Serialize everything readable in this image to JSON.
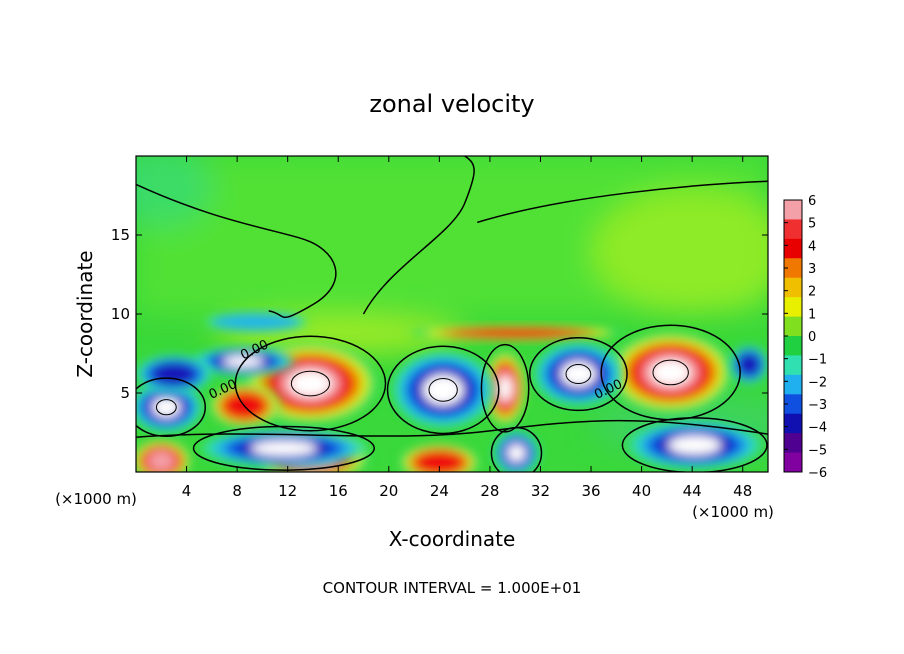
{
  "chart_data": {
    "type": "heatmap",
    "title": "zonal velocity",
    "xlabel": "X-coordinate",
    "ylabel": "Z-coordinate",
    "x_unit": "(×1000 m)",
    "z_unit": "(×1000 m)",
    "xlim": [
      0,
      50
    ],
    "ylim": [
      0,
      20
    ],
    "x_ticks": [
      4,
      8,
      12,
      16,
      20,
      24,
      28,
      32,
      36,
      40,
      44,
      48
    ],
    "y_ticks": [
      5,
      10,
      15
    ],
    "colorbar": {
      "min": -6,
      "max": 6,
      "tick_labels": [
        "6",
        "5",
        "4",
        "3",
        "2",
        "1",
        "0",
        "−1",
        "−2",
        "−3",
        "−4",
        "−5",
        "−6"
      ],
      "colors": [
        "#f4a0a8",
        "#f03030",
        "#e80000",
        "#f07800",
        "#f0c000",
        "#e8f000",
        "#80e020",
        "#20d040",
        "#30e0b0",
        "#20b0f0",
        "#1050e0",
        "#1010b0",
        "#500090",
        "#8000a0"
      ]
    },
    "contour_labels": [
      {
        "text": "0.00",
        "x": 9.5,
        "z": 7.5
      },
      {
        "text": "0.00",
        "x": 7.0,
        "z": 5.0
      },
      {
        "text": "0.00",
        "x": 37.5,
        "z": 5.0
      }
    ],
    "footnote": "CONTOUR INTERVAL = 1.000E+01",
    "features": [
      {
        "kind": "positive",
        "x": 13.8,
        "z": 5.6,
        "a": 5.4,
        "b": 2.6,
        "level": 1
      },
      {
        "kind": "positive",
        "x": 42.3,
        "z": 6.3,
        "a": 5.0,
        "b": 2.6,
        "level": 1
      },
      {
        "kind": "positive",
        "x": 29.2,
        "z": 5.3,
        "a": 1.7,
        "b": 2.4,
        "level": 0.8
      },
      {
        "kind": "positive",
        "x": 8.6,
        "z": 4.2,
        "a": 2.8,
        "b": 1.4,
        "level": 0.55
      },
      {
        "kind": "positive",
        "x": 30.2,
        "z": 8.8,
        "a": 8.5,
        "b": 0.5,
        "level": 0.5
      },
      {
        "kind": "positive",
        "x": 14,
        "z": 0.9,
        "a": 4.5,
        "b": 1.5,
        "level": 0.7
      },
      {
        "kind": "positive",
        "x": 24,
        "z": 0.6,
        "a": 3.2,
        "b": 1.2,
        "level": 0.5
      },
      {
        "kind": "positive",
        "x": 2,
        "z": 0.7,
        "a": 2.4,
        "b": 1.4,
        "level": 0.7
      },
      {
        "kind": "negative",
        "x": 2.4,
        "z": 4.1,
        "a": 2.8,
        "b": 1.6,
        "level": 1
      },
      {
        "kind": "negative",
        "x": 24.3,
        "z": 5.2,
        "a": 4.0,
        "b": 2.4,
        "level": 1
      },
      {
        "kind": "negative",
        "x": 35.0,
        "z": 6.2,
        "a": 3.5,
        "b": 2.0,
        "level": 1
      },
      {
        "kind": "negative",
        "x": 8.5,
        "z": 7.0,
        "a": 4.0,
        "b": 0.9,
        "level": 0.7
      },
      {
        "kind": "negative",
        "x": 11.7,
        "z": 1.5,
        "a": 6.5,
        "b": 1.2,
        "level": 0.85
      },
      {
        "kind": "negative",
        "x": 44.2,
        "z": 1.7,
        "a": 5.2,
        "b": 1.5,
        "level": 0.9
      },
      {
        "kind": "negative",
        "x": 30.1,
        "z": 1.2,
        "a": 1.8,
        "b": 1.4,
        "level": 0.75
      },
      {
        "kind": "negative",
        "x": 3.0,
        "z": 6.2,
        "a": 3.0,
        "b": 1.2,
        "level": 0.6
      },
      {
        "kind": "negative",
        "x": 9.5,
        "z": 9.5,
        "a": 4.0,
        "b": 0.6,
        "level": 0.3
      },
      {
        "kind": "negative",
        "x": 48.5,
        "z": 6.8,
        "a": 1.5,
        "b": 1.2,
        "level": 0.5
      }
    ]
  }
}
